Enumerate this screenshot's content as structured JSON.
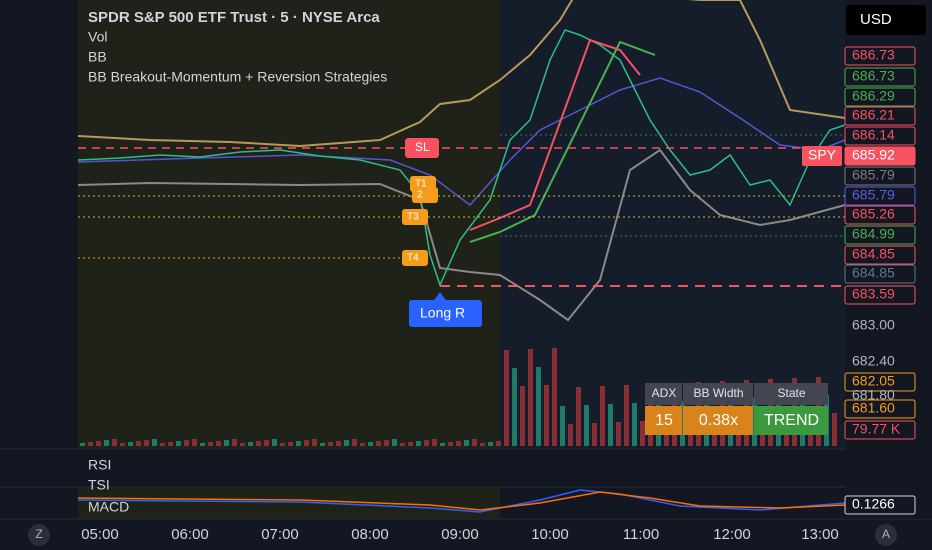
{
  "header": {
    "title": "SPDR S&P 500 ETF Trust · 5 · NYSE Arca",
    "indicators": [
      "Vol",
      "BB",
      "BB Breakout-Momentum + Reversion Strategies"
    ]
  },
  "currency": "USD",
  "price_axis": [
    "686.73",
    "686.73",
    "686.29",
    "686.21",
    "686.14",
    "685.92",
    "685.79",
    "685.79",
    "685.26",
    "684.99",
    "684.85",
    "684.85",
    "683.59",
    "683.00",
    "682.40",
    "682.05",
    "681.80",
    "681.60",
    "79.77 K"
  ],
  "symbol_tag": "SPY",
  "markers": {
    "stop": "SL",
    "targets": [
      "T1",
      "2",
      "T3",
      "T4"
    ],
    "signal": "Long R"
  },
  "table": {
    "header": [
      "ADX",
      "BB Width",
      "State"
    ],
    "rows": [
      [
        "15",
        "0.38x",
        "TREND"
      ]
    ]
  },
  "panes": [
    "RSI",
    "TSI",
    "MACD"
  ],
  "macd_value": "0.1266",
  "time_axis": [
    "05:00",
    "06:00",
    "07:00",
    "08:00",
    "09:00",
    "10:00",
    "11:00",
    "12:00",
    "13:00"
  ],
  "buttons": [
    "Z",
    "A"
  ]
}
